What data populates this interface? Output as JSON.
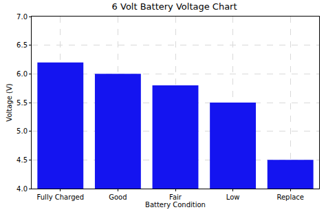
{
  "chart_data": {
    "type": "bar",
    "title": "6 Volt Battery Voltage Chart",
    "x_label": "Battery Condition",
    "y_label": "Voltage (V)",
    "categories": [
      "Fully Charged",
      "Good",
      "Fair",
      "Low",
      "Replace"
    ],
    "values": [
      6.2,
      6.0,
      5.8,
      5.5,
      4.5
    ],
    "color": "#1414f0",
    "ylim": [
      4.0,
      7.0
    ],
    "yticks": [
      {
        "value": 4.0,
        "label": "4.0"
      },
      4.5,
      {
        "value": 5.0,
        "label": "5.0"
      },
      5.5,
      {
        "value": 6.0,
        "label": "6.0"
      },
      6.5,
      {
        "value": 7.0,
        "label": "7.0"
      }
    ],
    "grid": true
  }
}
